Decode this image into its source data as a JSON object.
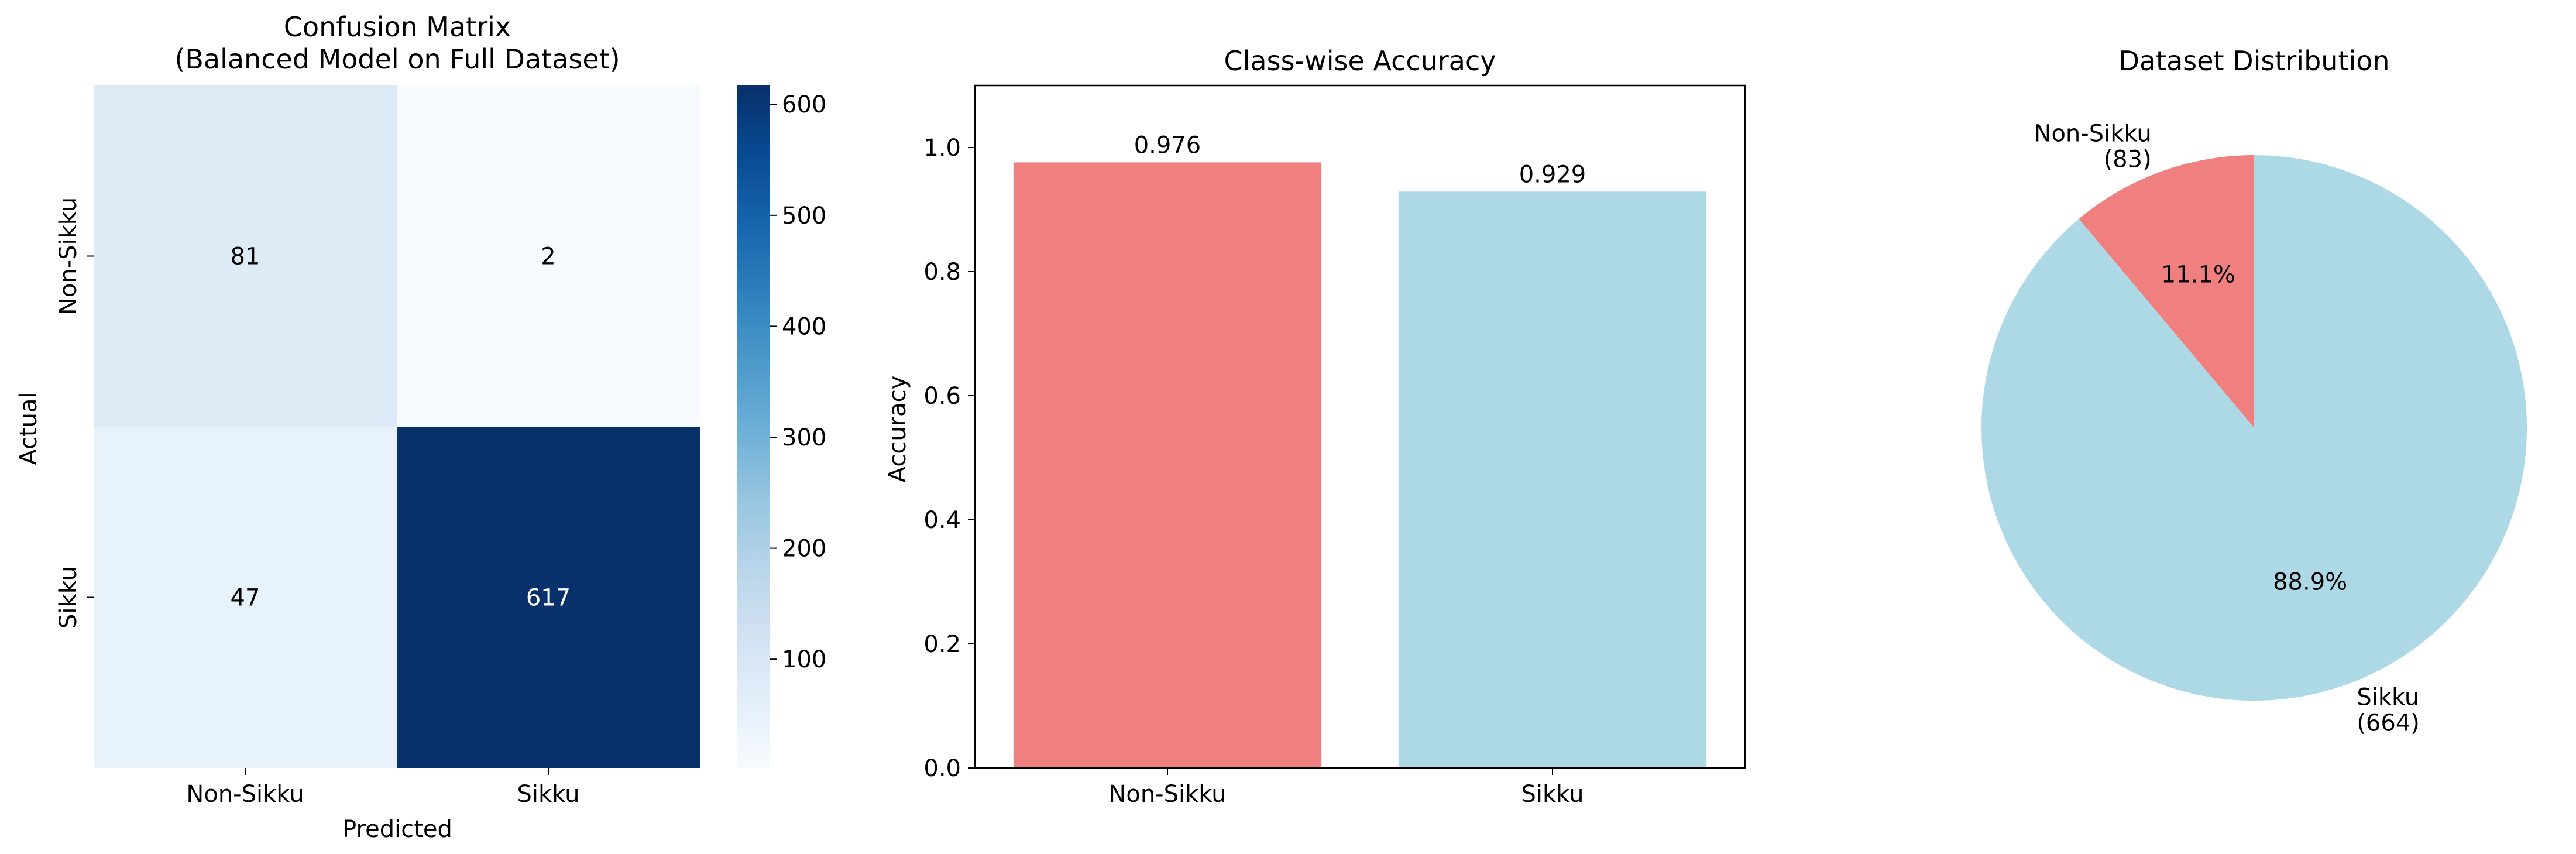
{
  "chart_data": [
    {
      "type": "heatmap",
      "title": "Confusion Matrix\n(Balanced Model on Full Dataset)",
      "title_lines": [
        "Confusion Matrix",
        "(Balanced Model on Full Dataset)"
      ],
      "xlabel": "Predicted",
      "ylabel": "Actual",
      "x_categories": [
        "Non-Sikku",
        "Sikku"
      ],
      "y_categories": [
        "Non-Sikku",
        "Sikku"
      ],
      "values": [
        [
          81,
          2
        ],
        [
          47,
          617
        ]
      ],
      "colormap": "Blues",
      "colorbar": {
        "ticks": [
          100,
          200,
          300,
          400,
          500,
          600
        ],
        "range": [
          2,
          617
        ]
      }
    },
    {
      "type": "bar",
      "title": "Class-wise Accuracy",
      "xlabel": "",
      "ylabel": "Accuracy",
      "categories": [
        "Non-Sikku",
        "Sikku"
      ],
      "values": [
        0.976,
        0.929
      ],
      "data_labels": [
        "0.976",
        "0.929"
      ],
      "colors": [
        "#f08080",
        "#add8e6"
      ],
      "ylim": [
        0,
        1.1
      ],
      "yticks": [
        "0.0",
        "0.2",
        "0.4",
        "0.6",
        "0.8",
        "1.0"
      ],
      "grid": false
    },
    {
      "type": "pie",
      "title": "Dataset Distribution",
      "labels": [
        "Non-Sikku\n(83)",
        "Sikku\n(664)"
      ],
      "label_lines": [
        [
          "Non-Sikku",
          "(83)"
        ],
        [
          "Sikku",
          "(664)"
        ]
      ],
      "values": [
        83,
        664
      ],
      "percent_labels": [
        "11.1%",
        "88.9%"
      ],
      "colors": [
        "#f08080",
        "#add8e6"
      ]
    }
  ]
}
